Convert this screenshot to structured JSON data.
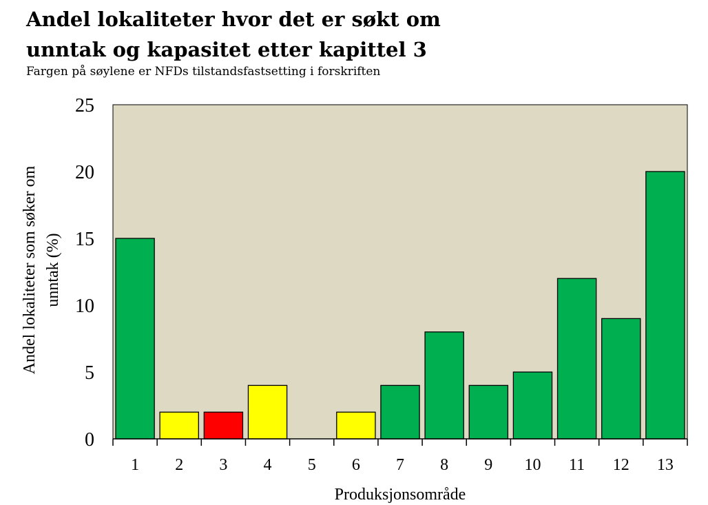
{
  "chart_data": {
    "type": "bar",
    "title_lines": [
      "Andel lokaliteter hvor det er søkt om",
      "unntak og kapasitet etter kapittel 3"
    ],
    "subtitle": "Fargen på søylene er NFDs tilstandsfastsetting i forskriften",
    "xlabel": "Produksjonsområde",
    "ylabel_lines": [
      "Andel lokaliteter som søker om",
      "unntak  (%)"
    ],
    "categories": [
      "1",
      "2",
      "3",
      "4",
      "5",
      "6",
      "7",
      "8",
      "9",
      "10",
      "11",
      "12",
      "13"
    ],
    "values": [
      15,
      2,
      2,
      4,
      0,
      2,
      4,
      8,
      4,
      5,
      12,
      9,
      20
    ],
    "status": [
      "green",
      "yellow",
      "red",
      "yellow",
      "yellow",
      "yellow",
      "green",
      "green",
      "green",
      "green",
      "green",
      "green",
      "green"
    ],
    "ylim": [
      0,
      25
    ],
    "yticks": [
      0,
      5,
      10,
      15,
      20,
      25
    ],
    "grid": false,
    "colors": {
      "green": "#00b050",
      "yellow": "#ffff00",
      "red": "#ff0000",
      "plot_background": "#ddd9c3"
    }
  }
}
